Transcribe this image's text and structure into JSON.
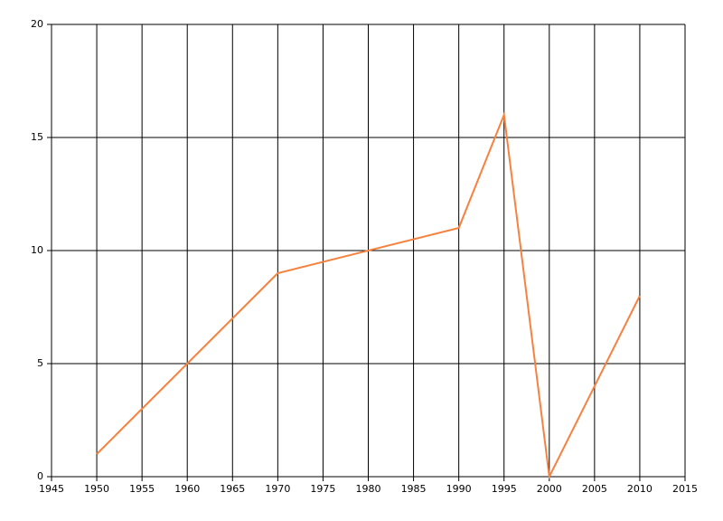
{
  "chart_data": {
    "type": "line",
    "x": [
      1950,
      1970,
      1990,
      1995,
      2000,
      2010
    ],
    "series": [
      {
        "color": "#f7813e",
        "values": [
          1,
          9,
          11,
          16,
          0,
          8
        ]
      }
    ],
    "xlim": [
      1945,
      2015
    ],
    "xticks": [
      1945,
      1950,
      1955,
      1960,
      1965,
      1970,
      1975,
      1980,
      1985,
      1990,
      1995,
      2000,
      2005,
      2010,
      2015
    ],
    "ylim": [
      0,
      20
    ],
    "yticks": [
      0,
      5,
      10,
      15,
      20
    ],
    "grid": true
  }
}
